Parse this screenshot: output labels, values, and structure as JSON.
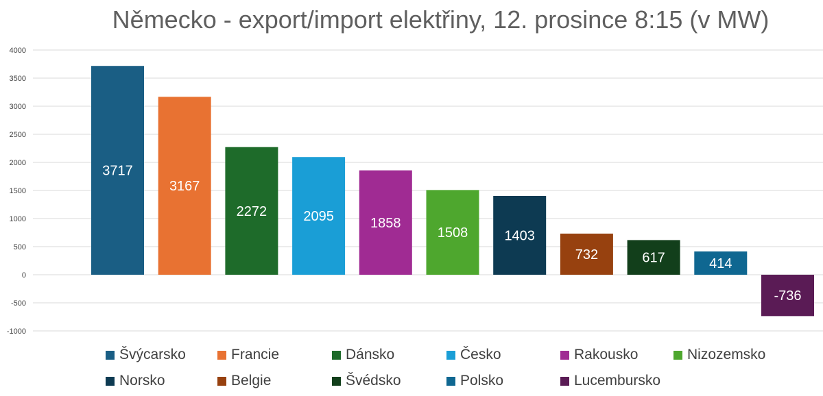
{
  "chart_data": {
    "type": "bar",
    "title": "Německo - export/import elektřiny, 12. prosince 8:15 (v MW)",
    "xlabel": "",
    "ylabel": "",
    "ylim": [
      -1000,
      4000
    ],
    "yticks": [
      4000,
      3500,
      3000,
      2500,
      2000,
      1500,
      1000,
      500,
      0,
      -500,
      -1000
    ],
    "grid": true,
    "legend_position": "bottom",
    "categories": [
      "Švýcarsko",
      "Francie",
      "Dánsko",
      "Česko",
      "Rakousko",
      "Nizozemsko",
      "Norsko",
      "Belgie",
      "Švédsko",
      "Polsko",
      "Lucembursko"
    ],
    "values": [
      3717,
      3167,
      2272,
      2095,
      1858,
      1508,
      1403,
      732,
      617,
      414,
      -736
    ],
    "colors": [
      "#1a5e84",
      "#e87232",
      "#1e6b2a",
      "#1a9ed6",
      "#a02b93",
      "#4ea72e",
      "#0d3a52",
      "#97410f",
      "#123f1b",
      "#0f6791",
      "#5a1b55"
    ],
    "data_labels": [
      "3717",
      "3167",
      "2272",
      "2095",
      "1858",
      "1508",
      "1403",
      "732",
      "617",
      "414",
      "-736"
    ]
  }
}
